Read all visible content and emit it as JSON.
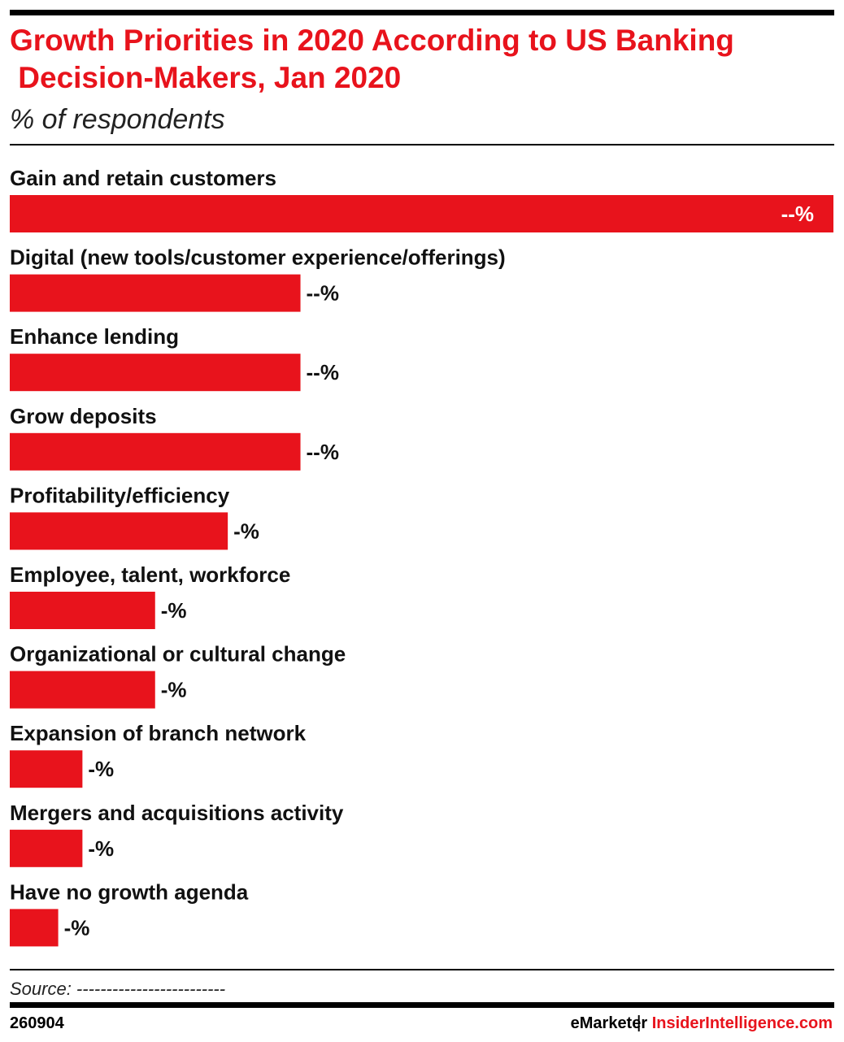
{
  "chart_data": {
    "type": "bar",
    "orientation": "horizontal",
    "title": "Growth Priorities in 2020 According to US Banking Decision-Makers, Jan 2020",
    "subtitle": "% of respondents",
    "categories": [
      "Gain and retain customers",
      "Digital (new tools/customer experience/offerings)",
      "Enhance lending",
      "Grow deposits",
      "Profitability/efficiency",
      "Employee, talent, workforce",
      "Organizational or cultural change",
      "Expansion of branch network",
      "Mergers and acquisitions activity",
      "Have no growth agenda"
    ],
    "values": [
      68,
      24,
      24,
      24,
      18,
      12,
      12,
      6,
      6,
      4
    ],
    "value_labels": [
      "--%",
      "--%",
      "--%",
      "--%",
      "-%",
      "-%",
      "-%",
      "-%",
      "-%",
      "-%"
    ],
    "xlim": [
      0,
      68
    ],
    "color": "#e8131c",
    "source": "Source: -------------------------"
  },
  "footer": {
    "id": "260904",
    "brand": "eMarketer",
    "site": "InsiderIntelligence.com"
  }
}
